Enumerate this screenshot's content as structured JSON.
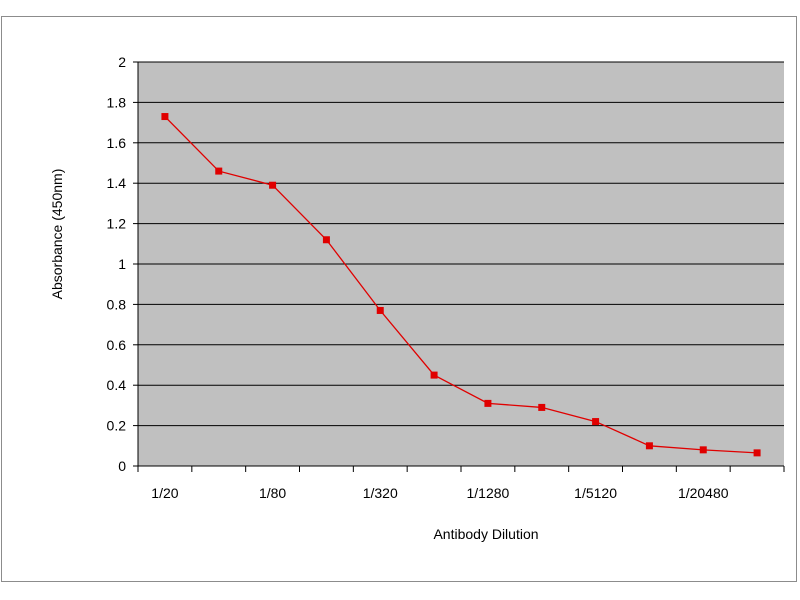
{
  "chart_data": {
    "type": "line",
    "title": "",
    "xlabel": "Antibody Dilution",
    "ylabel": "Absorbance (450nm)",
    "ylim": [
      0,
      2
    ],
    "y_ticks": [
      "0",
      "0.2",
      "0.4",
      "0.6",
      "0.8",
      "1",
      "1.2",
      "1.4",
      "1.6",
      "1.8",
      "2"
    ],
    "x_tick_labels": [
      "1/20",
      "",
      "1/80",
      "",
      "1/320",
      "",
      "1/1280",
      "",
      "1/5120",
      "",
      "1/20480",
      ""
    ],
    "grid": true,
    "legend": "none",
    "plot_background": "#c0c0c0",
    "series": [
      {
        "color": "#e00000",
        "values": [
          1.73,
          1.46,
          1.39,
          1.12,
          0.77,
          0.45,
          0.31,
          0.29,
          0.22,
          0.1,
          0.08,
          0.065
        ]
      }
    ]
  }
}
